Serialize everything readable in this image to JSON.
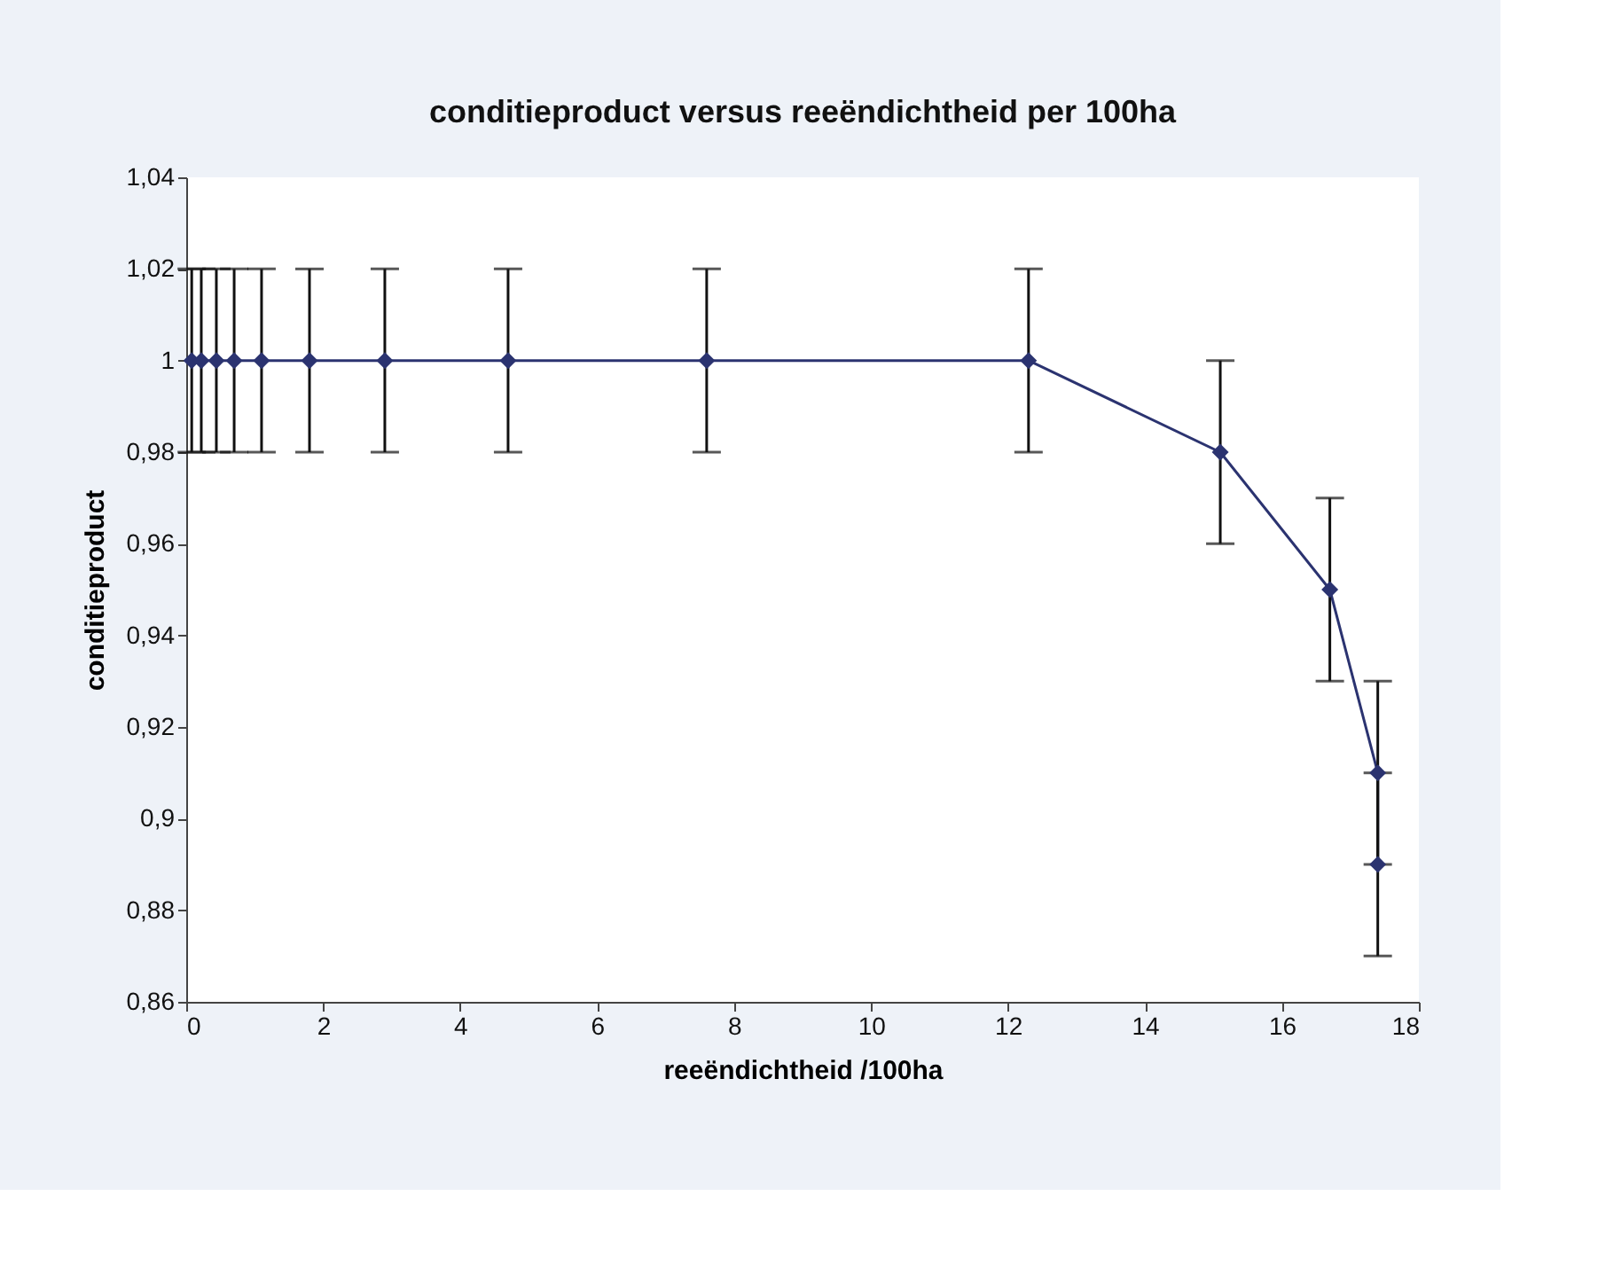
{
  "chart_data": {
    "type": "line",
    "title": "conditieproduct versus reeëndichtheid per 100ha",
    "xlabel": "reeëndichtheid /100ha",
    "ylabel": "conditieproduct",
    "x": [
      0.08,
      0.22,
      0.44,
      0.7,
      1.1,
      1.8,
      2.9,
      4.7,
      7.6,
      12.3,
      15.1,
      16.7,
      17.4,
      17.4
    ],
    "series": [
      {
        "color": "#2b3370",
        "values": [
          1,
          1,
          1,
          1,
          1,
          1,
          1,
          1,
          1,
          1,
          0.98,
          0.95,
          0.91,
          0.89
        ],
        "errors": [
          0.02,
          0.02,
          0.02,
          0.02,
          0.02,
          0.02,
          0.02,
          0.02,
          0.02,
          0.02,
          0.02,
          0.02,
          0.02,
          0.02
        ]
      }
    ],
    "xlim": [
      0,
      18
    ],
    "xticks": [
      0,
      2,
      4,
      6,
      8,
      10,
      12,
      14,
      16,
      18
    ],
    "ylim": [
      0.86,
      1.04
    ],
    "yticks": [
      {
        "value": 0.86,
        "label": "0,86"
      },
      {
        "value": 0.88,
        "label": "0,88"
      },
      {
        "value": 0.9,
        "label": "0,9"
      },
      {
        "value": 0.92,
        "label": "0,92"
      },
      {
        "value": 0.94,
        "label": "0,94"
      },
      {
        "value": 0.96,
        "label": "0,96"
      },
      {
        "value": 0.98,
        "label": "0,98"
      },
      {
        "value": 1,
        "label": "1"
      },
      {
        "value": 1.02,
        "label": "1,02"
      },
      {
        "value": 1.04,
        "label": "1,04"
      }
    ],
    "marker": "diamond",
    "line_style": "solid",
    "grid": false
  }
}
